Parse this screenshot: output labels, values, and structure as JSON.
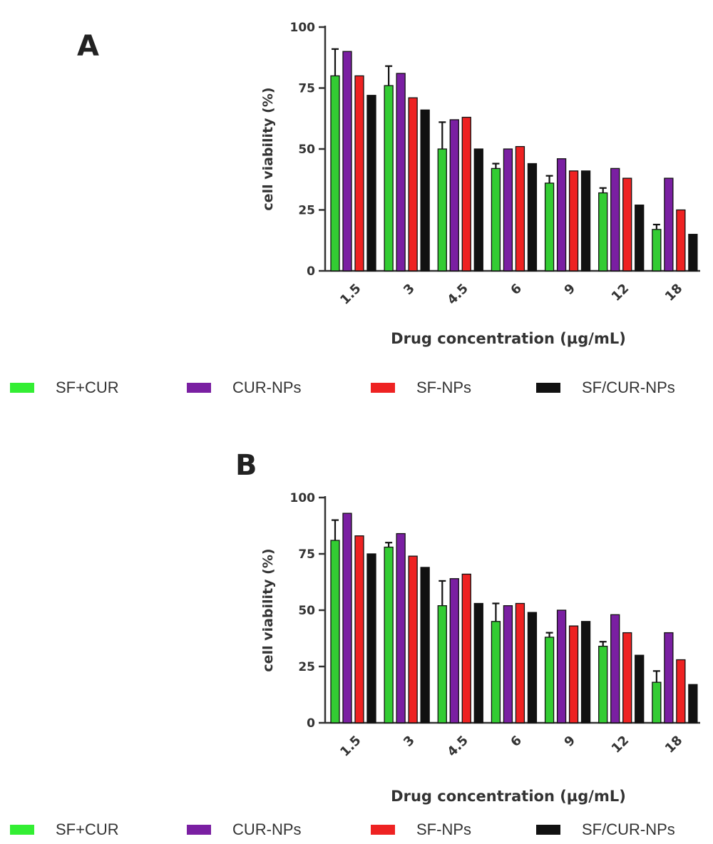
{
  "chart_data": [
    {
      "type": "bar",
      "panel_label": "A",
      "categories": [
        "1.5",
        "3",
        "4.5",
        "6",
        "9",
        "12",
        "18"
      ],
      "series": [
        {
          "name": "SF+CUR",
          "color": "#33cc33",
          "values": [
            80,
            76,
            50,
            42,
            36,
            32,
            17
          ],
          "error": [
            11,
            8,
            11,
            2,
            3,
            2,
            2
          ]
        },
        {
          "name": "CUR-NPs",
          "color": "#7a1fa2",
          "values": [
            90,
            81,
            62,
            50,
            46,
            42,
            38
          ]
        },
        {
          "name": "SF-NPs",
          "color": "#ee2222",
          "values": [
            80,
            71,
            63,
            51,
            41,
            38,
            25
          ]
        },
        {
          "name": "SF/CUR-NPs",
          "color": "#111111",
          "values": [
            72,
            66,
            50,
            44,
            41,
            27,
            15
          ]
        }
      ],
      "xlabel": "Drug concentration (µg/mL)",
      "ylabel": "cell viability (%)",
      "ylim": [
        0,
        100
      ],
      "yticks": [
        "0",
        "25",
        "50",
        "75",
        "100"
      ],
      "grid": false,
      "legend_placement": "bottom"
    },
    {
      "type": "bar",
      "panel_label": "B",
      "categories": [
        "1.5",
        "3",
        "4.5",
        "6",
        "9",
        "12",
        "18"
      ],
      "series": [
        {
          "name": "SF+CUR",
          "color": "#33cc33",
          "values": [
            81,
            78,
            52,
            45,
            38,
            34,
            18
          ],
          "error": [
            9,
            2,
            11,
            8,
            2,
            2,
            5
          ]
        },
        {
          "name": "CUR-NPs",
          "color": "#7a1fa2",
          "values": [
            93,
            84,
            64,
            52,
            50,
            48,
            40
          ]
        },
        {
          "name": "SF-NPs",
          "color": "#ee2222",
          "values": [
            83,
            74,
            66,
            53,
            43,
            40,
            28
          ]
        },
        {
          "name": "SF/CUR-NPs",
          "color": "#111111",
          "values": [
            75,
            69,
            53,
            49,
            45,
            30,
            17
          ]
        }
      ],
      "xlabel": "Drug concentration (µg/mL)",
      "ylabel": "cell viability (%)",
      "ylim": [
        0,
        100
      ],
      "yticks": [
        "0",
        "25",
        "50",
        "75",
        "100"
      ],
      "grid": false,
      "legend_placement": "bottom"
    }
  ],
  "legend": [
    {
      "label": "SF+CUR",
      "color": "#33ee33"
    },
    {
      "label": "CUR-NPs",
      "color": "#7a1fa2"
    },
    {
      "label": "SF-NPs",
      "color": "#ee2222"
    },
    {
      "label": "SF/CUR-NPs",
      "color": "#111111"
    }
  ]
}
